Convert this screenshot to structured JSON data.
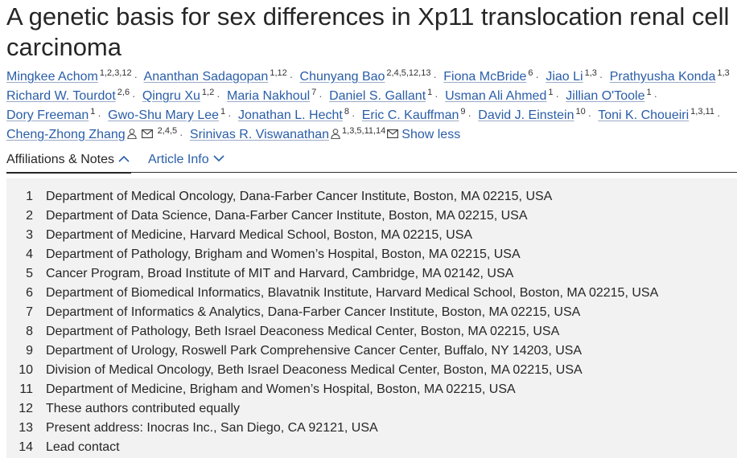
{
  "article": {
    "title": "A genetic basis for sex differences in Xp11 translocation renal cell carcinoma"
  },
  "authors": [
    {
      "name": "Mingkee Achom",
      "sup": "1,2,3,12"
    },
    {
      "name": "Ananthan Sadagopan",
      "sup": "1,12"
    },
    {
      "name": "Chunyang Bao",
      "sup": "2,4,5,12,13"
    },
    {
      "name": "Fiona McBride",
      "sup": "6"
    },
    {
      "name": "Jiao Li",
      "sup": "1,3"
    },
    {
      "name": "Prathyusha Konda",
      "sup": "1,3"
    },
    {
      "name": "Richard W. Tourdot",
      "sup": "2,6"
    },
    {
      "name": "Qingru Xu",
      "sup": "1,2"
    },
    {
      "name": "Maria Nakhoul",
      "sup": "7"
    },
    {
      "name": "Daniel S. Gallant",
      "sup": "1"
    },
    {
      "name": "Usman Ali Ahmed",
      "sup": "1"
    },
    {
      "name": "Jillian O'Toole",
      "sup": "1"
    },
    {
      "name": "Dory Freeman",
      "sup": "1"
    },
    {
      "name": "Gwo-Shu Mary Lee",
      "sup": "1"
    },
    {
      "name": "Jonathan L. Hecht",
      "sup": "8"
    },
    {
      "name": "Eric C. Kauffman",
      "sup": "9"
    },
    {
      "name": "David J. Einstein",
      "sup": "10"
    },
    {
      "name": "Toni K. Choueiri",
      "sup": "1,3,11"
    },
    {
      "name": "Cheng-Zhong Zhang",
      "sup": "2,4,5"
    },
    {
      "name": "Srinivas R. Viswanathan",
      "sup": "1,3,5,11,14"
    }
  ],
  "show_less_label": "Show less",
  "tabs": {
    "affiliations_label": "Affiliations & Notes",
    "article_info_label": "Article Info"
  },
  "affiliations": [
    {
      "num": "1",
      "text": "Department of Medical Oncology, Dana-Farber Cancer Institute, Boston, MA 02215, USA"
    },
    {
      "num": "2",
      "text": "Department of Data Science, Dana-Farber Cancer Institute, Boston, MA 02215, USA"
    },
    {
      "num": "3",
      "text": "Department of Medicine, Harvard Medical School, Boston, MA 02215, USA"
    },
    {
      "num": "4",
      "text": "Department of Pathology, Brigham and Women’s Hospital, Boston, MA 02215, USA"
    },
    {
      "num": "5",
      "text": "Cancer Program, Broad Institute of MIT and Harvard, Cambridge, MA 02142, USA"
    },
    {
      "num": "6",
      "text": "Department of Biomedical Informatics, Blavatnik Institute, Harvard Medical School, Boston, MA 02215, USA"
    },
    {
      "num": "7",
      "text": "Department of Informatics & Analytics, Dana-Farber Cancer Institute, Boston, MA 02215, USA"
    },
    {
      "num": "8",
      "text": "Department of Pathology, Beth Israel Deaconess Medical Center, Boston, MA 02215, USA"
    },
    {
      "num": "9",
      "text": "Department of Urology, Roswell Park Comprehensive Cancer Center, Buffalo, NY 14203, USA"
    },
    {
      "num": "10",
      "text": "Division of Medical Oncology, Beth Israel Deaconess Medical Center, Boston, MA 02215, USA"
    },
    {
      "num": "11",
      "text": "Department of Medicine, Brigham and Women’s Hospital, Boston, MA 02215, USA"
    },
    {
      "num": "12",
      "text": "These authors contributed equally"
    },
    {
      "num": "13",
      "text": "Present address: Inocras Inc., San Diego, CA 92121, USA"
    },
    {
      "num": "14",
      "text": "Lead contact"
    }
  ],
  "icons": {
    "corresponding_author": "person-icon",
    "email": "mail-icon",
    "tab_expanded": "chevron-up-icon",
    "tab_collapsed": "chevron-down-icon"
  },
  "colors": {
    "link": "#2a5ea8",
    "text": "#262626",
    "panel_bg": "#f2f2f2"
  }
}
